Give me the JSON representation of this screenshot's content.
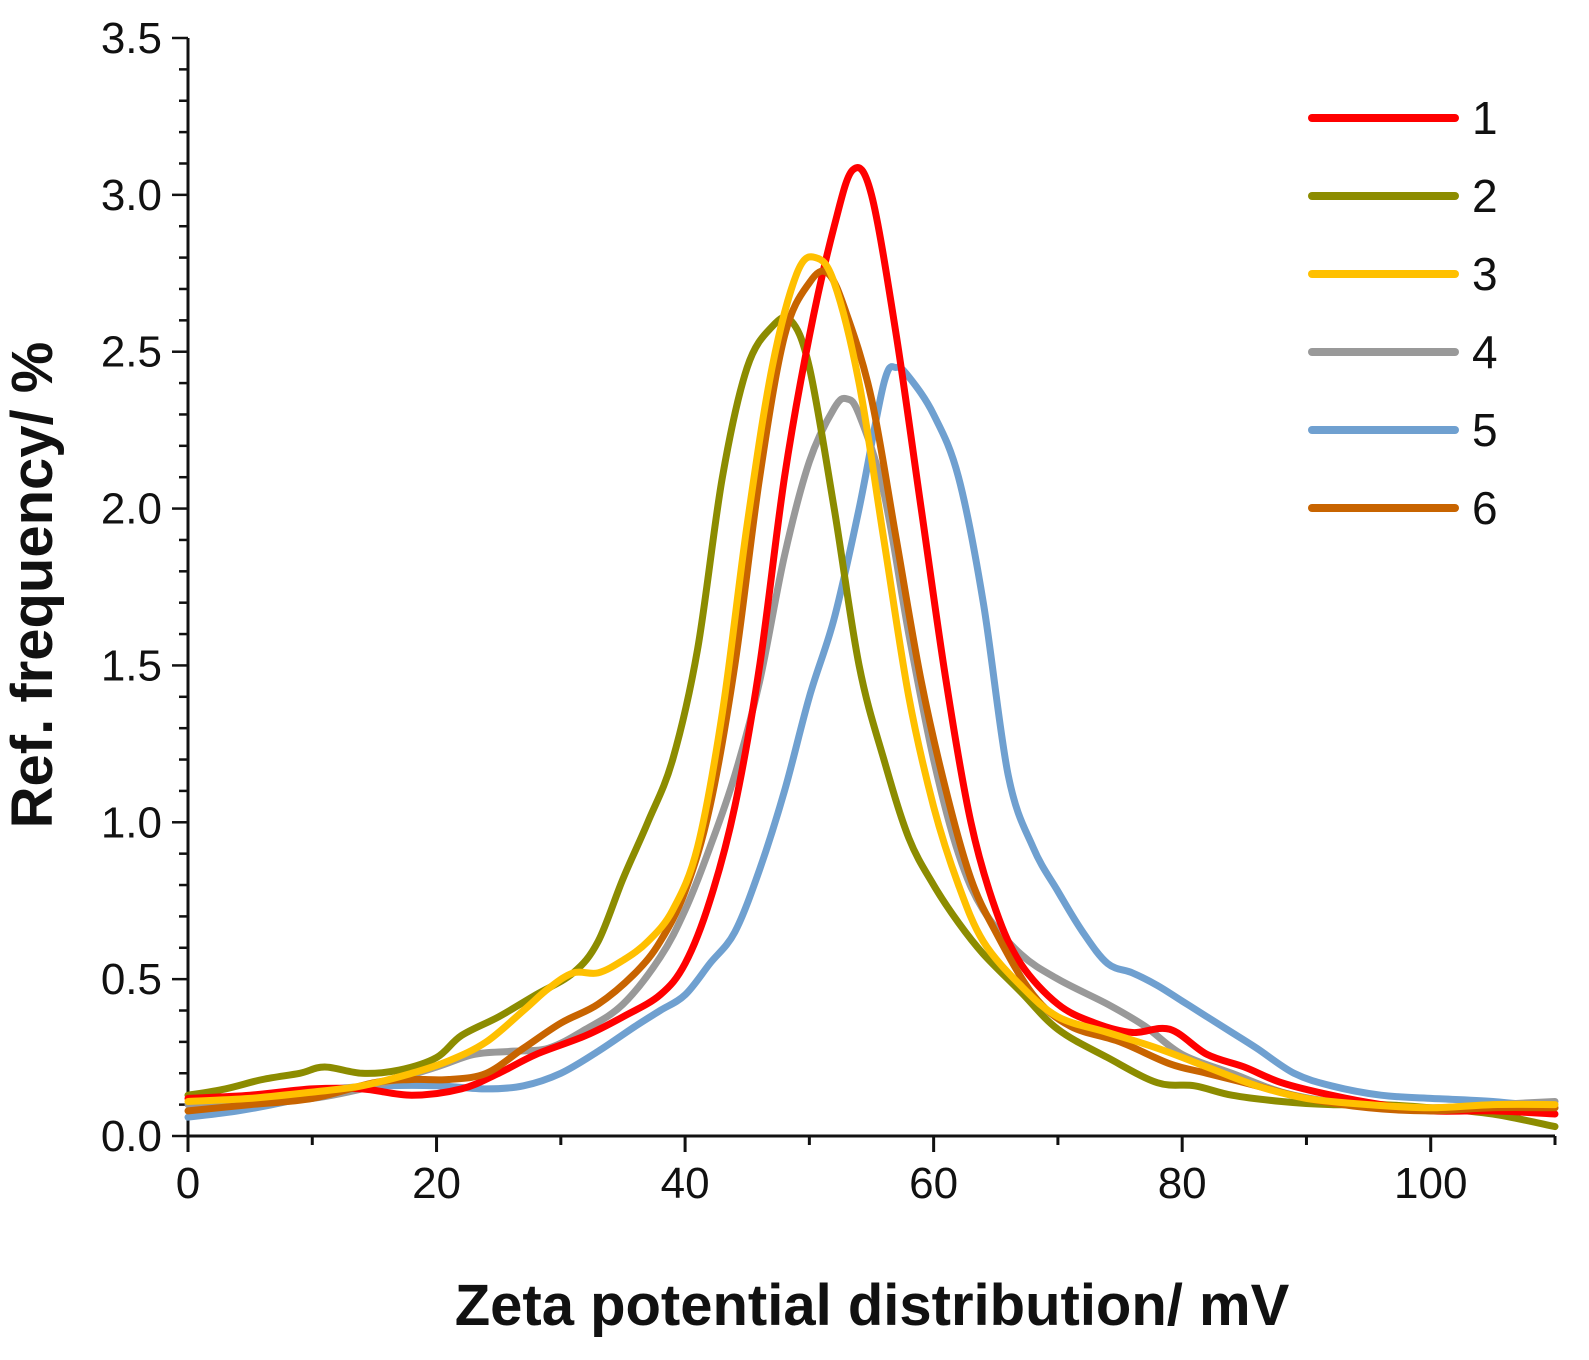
{
  "chart_data": {
    "type": "line",
    "title": "",
    "xlabel": "Zeta potential distribution/ mV",
    "ylabel": "Ref. frequency/ %",
    "xlim": [
      0,
      110
    ],
    "ylim": [
      0,
      3.5
    ],
    "x_ticks": [
      0,
      20,
      40,
      60,
      80,
      100
    ],
    "x_tick_labels": [
      "0",
      "20",
      "40",
      "60",
      "80",
      "100"
    ],
    "y_ticks": [
      0,
      0.5,
      1.0,
      1.5,
      2.0,
      2.5,
      3.0,
      3.5
    ],
    "y_tick_labels": [
      "0.0",
      "0.5",
      "1.0",
      "1.5",
      "2.0",
      "2.5",
      "3.0",
      "3.5"
    ],
    "legend_position": "top-right",
    "grid": false,
    "series": [
      {
        "name": "1",
        "color": "#ff0000",
        "points": [
          [
            0,
            0.12
          ],
          [
            5,
            0.13
          ],
          [
            10,
            0.15
          ],
          [
            14,
            0.15
          ],
          [
            18,
            0.13
          ],
          [
            22,
            0.15
          ],
          [
            25,
            0.2
          ],
          [
            28,
            0.26
          ],
          [
            32,
            0.32
          ],
          [
            35,
            0.38
          ],
          [
            38,
            0.45
          ],
          [
            40,
            0.55
          ],
          [
            42,
            0.75
          ],
          [
            44,
            1.05
          ],
          [
            46,
            1.5
          ],
          [
            48,
            2.1
          ],
          [
            50,
            2.55
          ],
          [
            52,
            2.9
          ],
          [
            53.5,
            3.08
          ],
          [
            55,
            3.0
          ],
          [
            57,
            2.55
          ],
          [
            59,
            2.0
          ],
          [
            61,
            1.45
          ],
          [
            63,
            1.0
          ],
          [
            65,
            0.72
          ],
          [
            67,
            0.55
          ],
          [
            70,
            0.42
          ],
          [
            73,
            0.36
          ],
          [
            76,
            0.33
          ],
          [
            79,
            0.34
          ],
          [
            82,
            0.26
          ],
          [
            85,
            0.22
          ],
          [
            88,
            0.17
          ],
          [
            92,
            0.13
          ],
          [
            96,
            0.1
          ],
          [
            100,
            0.08
          ],
          [
            105,
            0.08
          ],
          [
            110,
            0.07
          ]
        ]
      },
      {
        "name": "2",
        "color": "#8c8c00",
        "points": [
          [
            0,
            0.13
          ],
          [
            3,
            0.15
          ],
          [
            6,
            0.18
          ],
          [
            9,
            0.2
          ],
          [
            11,
            0.22
          ],
          [
            14,
            0.2
          ],
          [
            17,
            0.21
          ],
          [
            20,
            0.25
          ],
          [
            22,
            0.32
          ],
          [
            25,
            0.38
          ],
          [
            28,
            0.45
          ],
          [
            31,
            0.52
          ],
          [
            33,
            0.62
          ],
          [
            35,
            0.82
          ],
          [
            37,
            1.0
          ],
          [
            39,
            1.2
          ],
          [
            41,
            1.55
          ],
          [
            43,
            2.1
          ],
          [
            45,
            2.45
          ],
          [
            47,
            2.58
          ],
          [
            48.5,
            2.6
          ],
          [
            50,
            2.45
          ],
          [
            52,
            2.0
          ],
          [
            54,
            1.5
          ],
          [
            56,
            1.2
          ],
          [
            58,
            0.95
          ],
          [
            60,
            0.8
          ],
          [
            62,
            0.68
          ],
          [
            64,
            0.58
          ],
          [
            67,
            0.46
          ],
          [
            70,
            0.34
          ],
          [
            74,
            0.25
          ],
          [
            78,
            0.17
          ],
          [
            81,
            0.16
          ],
          [
            84,
            0.13
          ],
          [
            88,
            0.11
          ],
          [
            92,
            0.1
          ],
          [
            96,
            0.1
          ],
          [
            100,
            0.09
          ],
          [
            105,
            0.07
          ],
          [
            110,
            0.03
          ]
        ]
      },
      {
        "name": "3",
        "color": "#ffc000",
        "points": [
          [
            0,
            0.11
          ],
          [
            5,
            0.12
          ],
          [
            10,
            0.14
          ],
          [
            14,
            0.16
          ],
          [
            18,
            0.2
          ],
          [
            21,
            0.24
          ],
          [
            24,
            0.3
          ],
          [
            27,
            0.4
          ],
          [
            29,
            0.47
          ],
          [
            31,
            0.52
          ],
          [
            33,
            0.52
          ],
          [
            35,
            0.56
          ],
          [
            37,
            0.62
          ],
          [
            39,
            0.72
          ],
          [
            41,
            0.92
          ],
          [
            43,
            1.35
          ],
          [
            45,
            1.95
          ],
          [
            47,
            2.45
          ],
          [
            49,
            2.75
          ],
          [
            50.5,
            2.8
          ],
          [
            52,
            2.72
          ],
          [
            54,
            2.4
          ],
          [
            56,
            1.9
          ],
          [
            58,
            1.4
          ],
          [
            60,
            1.05
          ],
          [
            62,
            0.8
          ],
          [
            64,
            0.62
          ],
          [
            67,
            0.48
          ],
          [
            70,
            0.38
          ],
          [
            74,
            0.33
          ],
          [
            78,
            0.28
          ],
          [
            82,
            0.22
          ],
          [
            86,
            0.16
          ],
          [
            90,
            0.12
          ],
          [
            95,
            0.1
          ],
          [
            100,
            0.09
          ],
          [
            105,
            0.1
          ],
          [
            110,
            0.1
          ]
        ]
      },
      {
        "name": "4",
        "color": "#999999",
        "points": [
          [
            0,
            0.1
          ],
          [
            5,
            0.11
          ],
          [
            10,
            0.12
          ],
          [
            15,
            0.16
          ],
          [
            20,
            0.22
          ],
          [
            23,
            0.26
          ],
          [
            26,
            0.27
          ],
          [
            29,
            0.28
          ],
          [
            32,
            0.34
          ],
          [
            35,
            0.42
          ],
          [
            38,
            0.57
          ],
          [
            40,
            0.72
          ],
          [
            42,
            0.92
          ],
          [
            44,
            1.15
          ],
          [
            46,
            1.45
          ],
          [
            48,
            1.85
          ],
          [
            50,
            2.15
          ],
          [
            52,
            2.32
          ],
          [
            53,
            2.35
          ],
          [
            54,
            2.3
          ],
          [
            56,
            2.05
          ],
          [
            58,
            1.6
          ],
          [
            60,
            1.2
          ],
          [
            62,
            0.9
          ],
          [
            64,
            0.72
          ],
          [
            67,
            0.58
          ],
          [
            70,
            0.5
          ],
          [
            74,
            0.42
          ],
          [
            77,
            0.35
          ],
          [
            80,
            0.26
          ],
          [
            84,
            0.2
          ],
          [
            88,
            0.14
          ],
          [
            92,
            0.11
          ],
          [
            96,
            0.1
          ],
          [
            100,
            0.09
          ],
          [
            105,
            0.1
          ],
          [
            110,
            0.11
          ]
        ]
      },
      {
        "name": "5",
        "color": "#6fa0d0",
        "points": [
          [
            0,
            0.06
          ],
          [
            4,
            0.08
          ],
          [
            8,
            0.11
          ],
          [
            12,
            0.15
          ],
          [
            16,
            0.16
          ],
          [
            20,
            0.16
          ],
          [
            24,
            0.15
          ],
          [
            27,
            0.16
          ],
          [
            30,
            0.2
          ],
          [
            33,
            0.27
          ],
          [
            36,
            0.35
          ],
          [
            38,
            0.4
          ],
          [
            40,
            0.45
          ],
          [
            42,
            0.55
          ],
          [
            44,
            0.65
          ],
          [
            46,
            0.85
          ],
          [
            48,
            1.1
          ],
          [
            50,
            1.4
          ],
          [
            52,
            1.65
          ],
          [
            54,
            2.0
          ],
          [
            56,
            2.4
          ],
          [
            57,
            2.45
          ],
          [
            58,
            2.42
          ],
          [
            60,
            2.3
          ],
          [
            62,
            2.1
          ],
          [
            64,
            1.7
          ],
          [
            66,
            1.15
          ],
          [
            68,
            0.92
          ],
          [
            70,
            0.78
          ],
          [
            72,
            0.65
          ],
          [
            74,
            0.55
          ],
          [
            76,
            0.52
          ],
          [
            78,
            0.48
          ],
          [
            80,
            0.43
          ],
          [
            82,
            0.38
          ],
          [
            84,
            0.33
          ],
          [
            86,
            0.28
          ],
          [
            89,
            0.2
          ],
          [
            92,
            0.16
          ],
          [
            96,
            0.13
          ],
          [
            100,
            0.12
          ],
          [
            105,
            0.11
          ],
          [
            110,
            0.09
          ]
        ]
      },
      {
        "name": "6",
        "color": "#c86400",
        "points": [
          [
            0,
            0.08
          ],
          [
            5,
            0.1
          ],
          [
            10,
            0.12
          ],
          [
            15,
            0.17
          ],
          [
            18,
            0.18
          ],
          [
            21,
            0.18
          ],
          [
            24,
            0.2
          ],
          [
            27,
            0.28
          ],
          [
            30,
            0.36
          ],
          [
            33,
            0.42
          ],
          [
            36,
            0.52
          ],
          [
            38,
            0.62
          ],
          [
            40,
            0.78
          ],
          [
            42,
            1.05
          ],
          [
            44,
            1.5
          ],
          [
            46,
            2.1
          ],
          [
            48,
            2.55
          ],
          [
            50,
            2.72
          ],
          [
            51.5,
            2.75
          ],
          [
            53,
            2.62
          ],
          [
            55,
            2.35
          ],
          [
            57,
            1.9
          ],
          [
            59,
            1.45
          ],
          [
            61,
            1.1
          ],
          [
            63,
            0.82
          ],
          [
            65,
            0.65
          ],
          [
            68,
            0.45
          ],
          [
            71,
            0.35
          ],
          [
            75,
            0.3
          ],
          [
            79,
            0.23
          ],
          [
            82,
            0.2
          ],
          [
            86,
            0.16
          ],
          [
            90,
            0.12
          ],
          [
            95,
            0.09
          ],
          [
            100,
            0.08
          ],
          [
            105,
            0.09
          ],
          [
            110,
            0.09
          ]
        ]
      }
    ]
  }
}
